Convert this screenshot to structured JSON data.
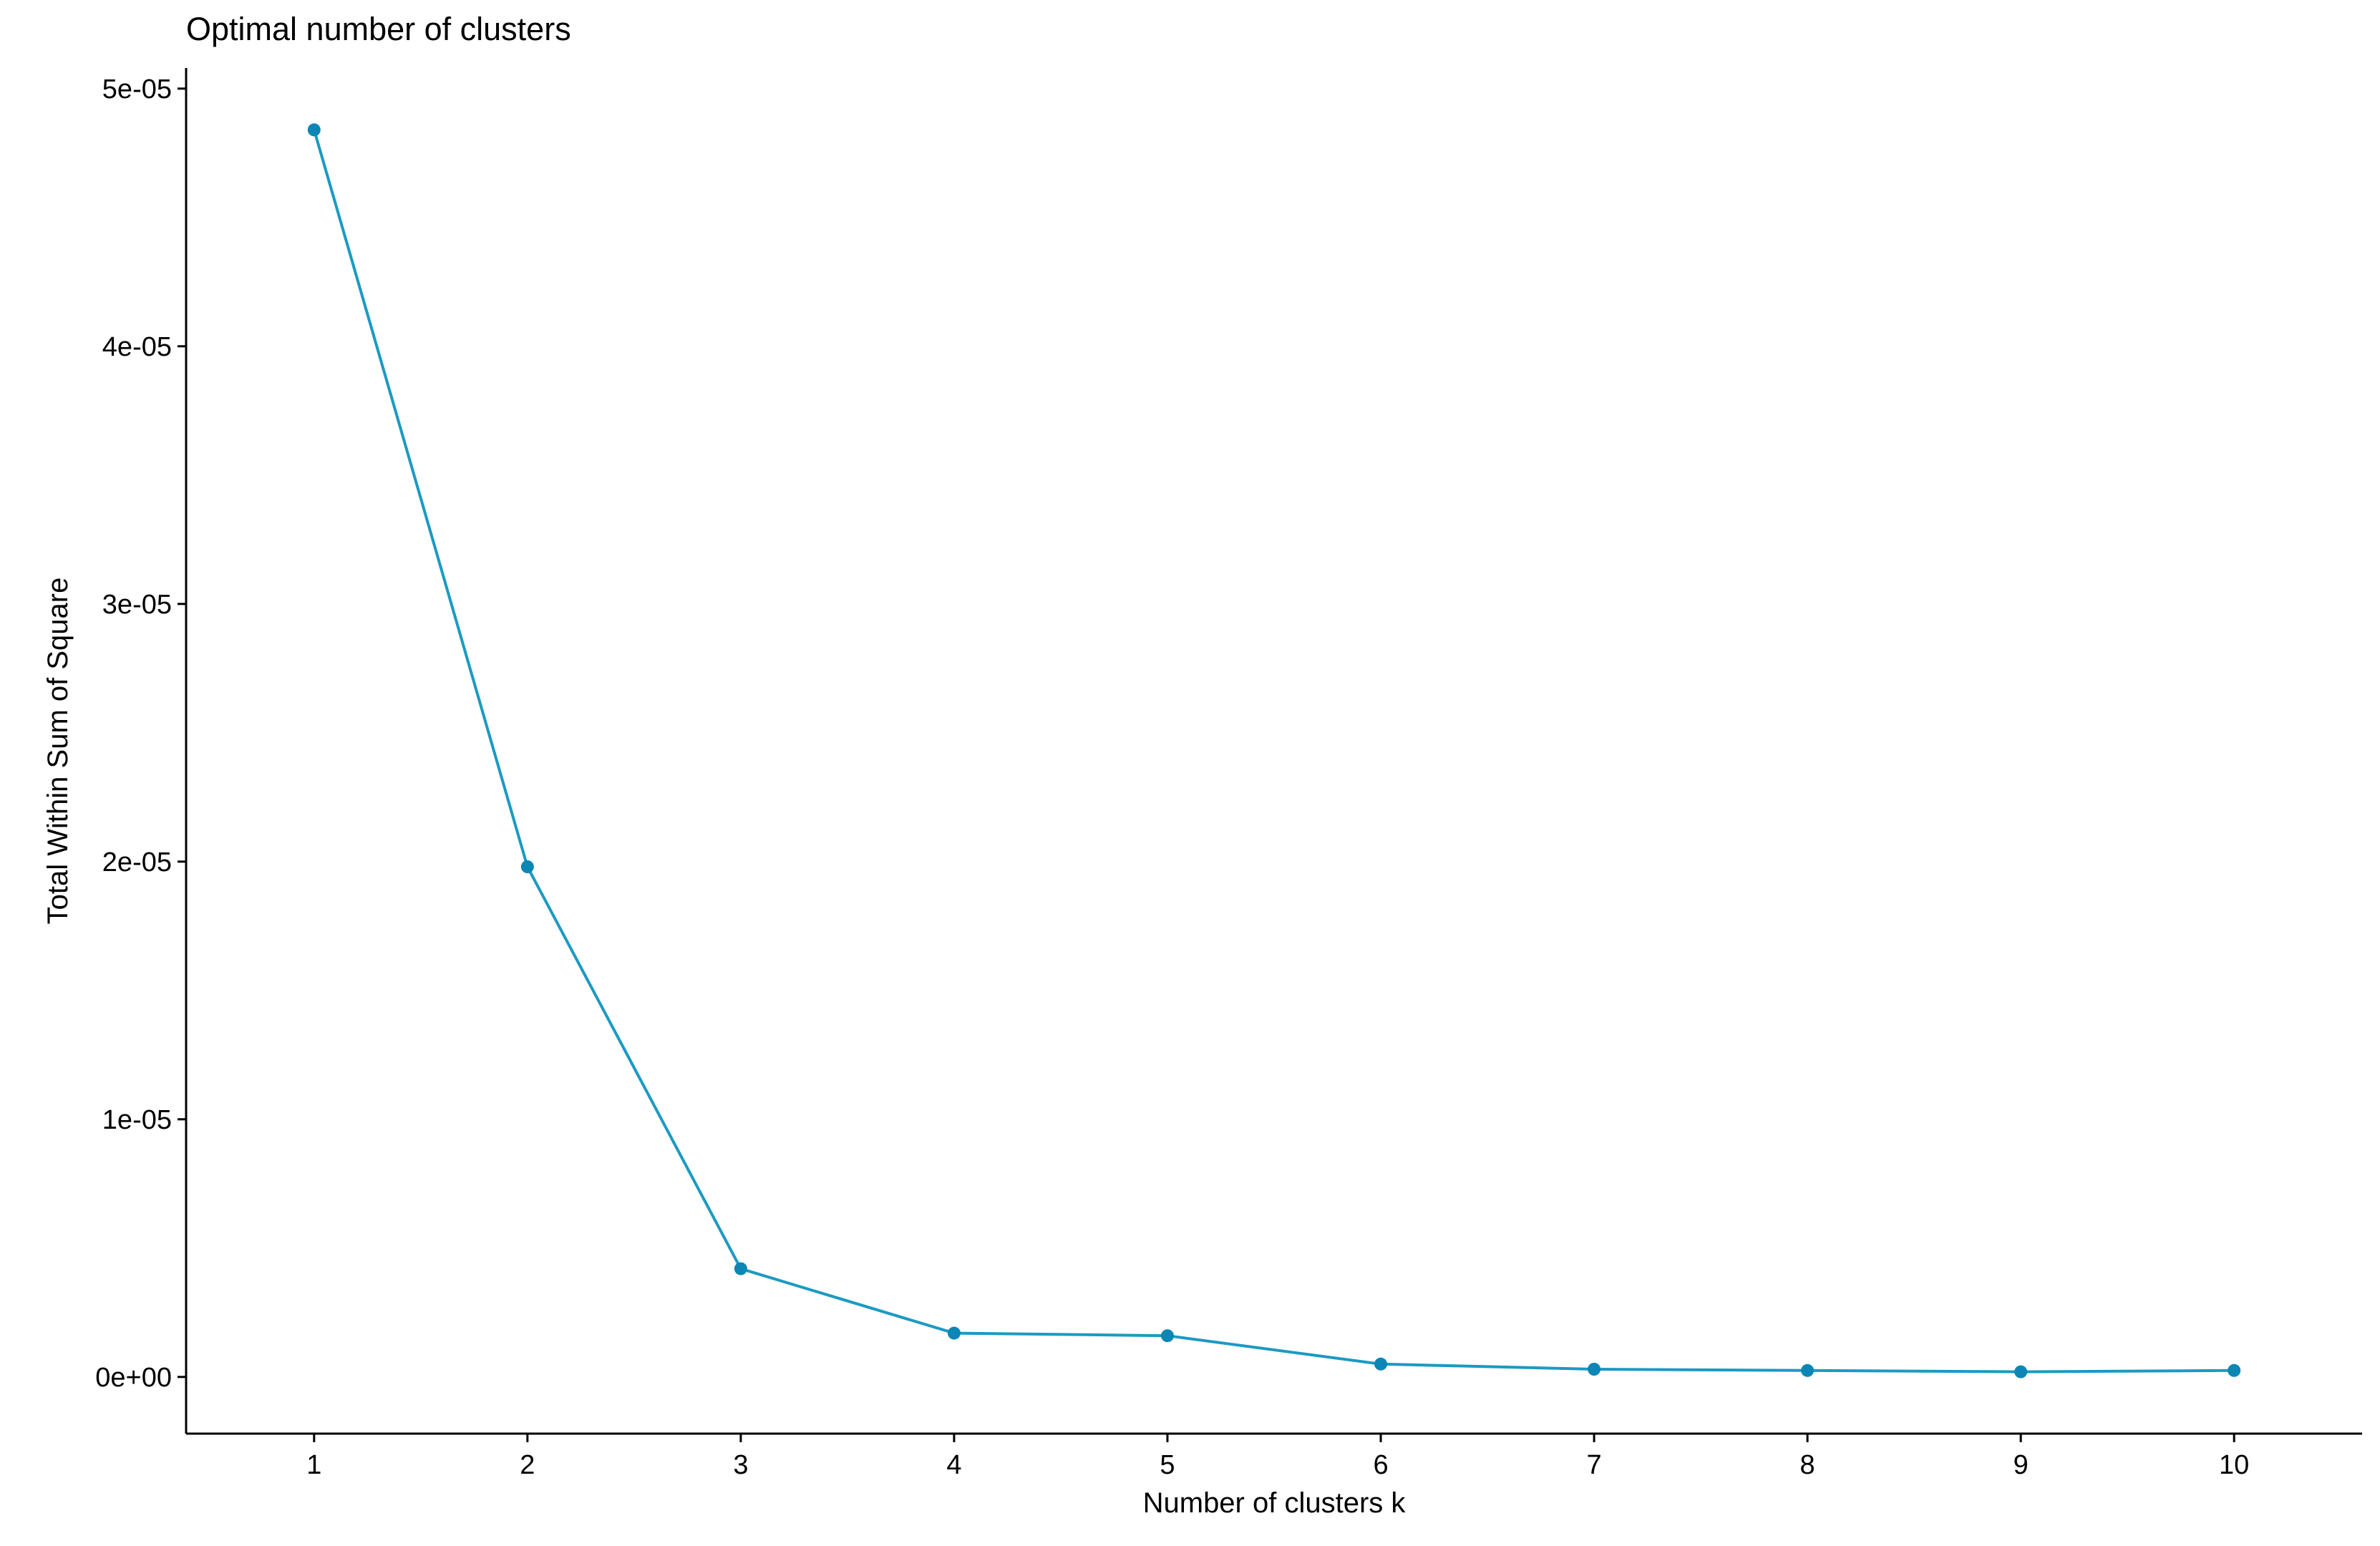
{
  "chart_data": {
    "type": "line",
    "title": "Optimal number of clusters",
    "xlabel": "Number of clusters k",
    "ylabel": "Total Within Sum of Square",
    "x": [
      1,
      2,
      3,
      4,
      5,
      6,
      7,
      8,
      9,
      10
    ],
    "series": [
      {
        "values": [
          4.84e-05,
          1.98e-05,
          4.2e-06,
          1.7e-06,
          1.6e-06,
          5e-07,
          3e-07,
          2.5e-07,
          2e-07,
          2.5e-07
        ]
      }
    ],
    "x_ticks": [
      "1",
      "2",
      "3",
      "4",
      "5",
      "6",
      "7",
      "8",
      "9",
      "10"
    ],
    "y_ticks": [
      {
        "value": 0,
        "label": "0e+00"
      },
      {
        "value": 1e-05,
        "label": "1e-05"
      },
      {
        "value": 2e-05,
        "label": "2e-05"
      },
      {
        "value": 3e-05,
        "label": "3e-05"
      },
      {
        "value": 4e-05,
        "label": "4e-05"
      },
      {
        "value": 5e-05,
        "label": "5e-05"
      }
    ],
    "xlim": [
      0.4,
      10.6
    ],
    "ylim": [
      -2.2e-06,
      5.08e-05
    ],
    "grid": false,
    "legend": "none",
    "colors": {
      "line": "#1b9ac2",
      "point": "#0b86b5",
      "axis": "#000000"
    }
  }
}
